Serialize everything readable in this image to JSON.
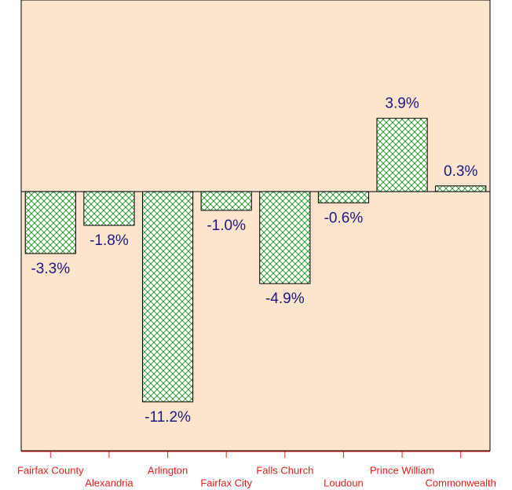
{
  "chart_data": {
    "type": "bar",
    "categories": [
      "Fairfax County",
      "Alexandria",
      "Arlington",
      "Fairfax City",
      "Falls Church",
      "Loudoun",
      "Prince William",
      "Commonwealth"
    ],
    "values": [
      -3.3,
      -1.8,
      -11.2,
      -1.0,
      -4.9,
      -0.6,
      3.9,
      0.3
    ],
    "value_labels": [
      "-3.3%",
      "-1.8%",
      "-11.2%",
      "-1.0%",
      "-4.9%",
      "-0.6%",
      "3.9%",
      "0.3%"
    ],
    "color": "#1a8a1a",
    "ylim": [
      -13.8,
      10.2
    ]
  }
}
